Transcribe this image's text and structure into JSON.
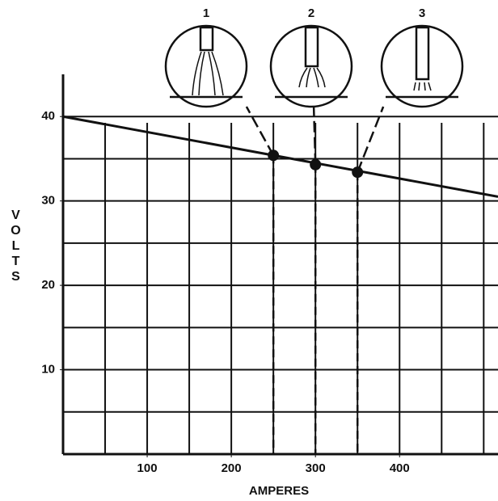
{
  "chart_data": {
    "type": "line",
    "x_label": "AMPERES",
    "y_label": "VOLTS",
    "xlim": [
      0,
      517
    ],
    "ylim": [
      0,
      45
    ],
    "xticks": [
      100,
      200,
      300,
      400
    ],
    "yticks": [
      10,
      20,
      30,
      40
    ],
    "xgrid": [
      50,
      100,
      150,
      200,
      250,
      300,
      350,
      400,
      450,
      500
    ],
    "ygrid": [
      5,
      10,
      15,
      20,
      25,
      30,
      35,
      40
    ],
    "series": [
      {
        "x": [
          0,
          517
        ],
        "values": [
          40,
          30.5
        ],
        "color": "#111"
      }
    ],
    "points": {
      "labels": [
        "1",
        "2",
        "3"
      ],
      "x": [
        250,
        300,
        350
      ],
      "values": [
        35.4,
        34.3,
        33.4
      ],
      "color": "#111"
    }
  }
}
